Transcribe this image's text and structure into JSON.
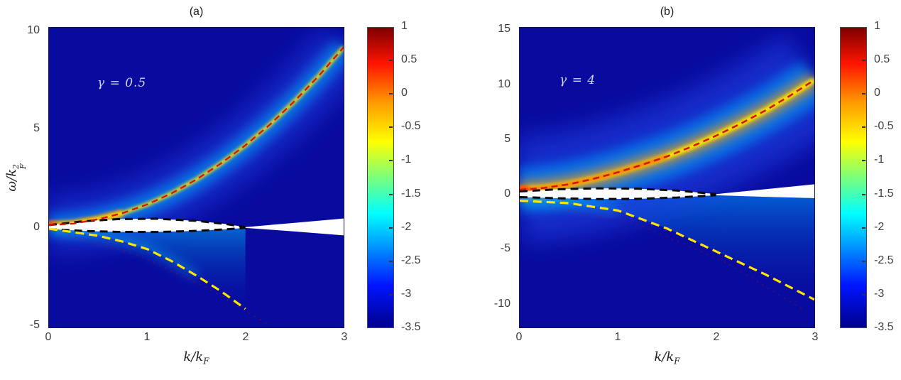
{
  "figure": {
    "background_color": "#ffffff",
    "description_colors": {
      "heatmap_background": "#090b9f",
      "ridge_core": "#ffe800",
      "ridge_dashed_line": "#d41800",
      "lower_branch_dashed_line": "#ffe600",
      "continuum_border_dashed": "#0a0a0a",
      "continuum_fill": "#ffffff",
      "annotation_text": "#ccd6f1"
    }
  },
  "chart_data": [
    {
      "type": "heatmap",
      "title": "(a)",
      "annotation": "γ = 0.5",
      "xlabel": "k/k_F",
      "ylabel": "ω/k_F^2",
      "xlabel_parts": {
        "base": "k/k",
        "sub": "F"
      },
      "ylabel_parts": {
        "base": "ω/k",
        "sup": "2",
        "sub": "F"
      },
      "xlim": [
        0,
        3
      ],
      "ylim": [
        -5.1,
        10.2
      ],
      "xtick_vals": [
        0,
        1,
        2,
        3
      ],
      "xtick_labels": [
        "0",
        "1",
        "2",
        "3"
      ],
      "ytick_vals": [
        10,
        5,
        0,
        -5
      ],
      "ytick_labels": [
        "10",
        "5",
        "0",
        "-5"
      ],
      "grid": false,
      "colorbar": {
        "min": -3.5,
        "max": 1,
        "colormap": "jet",
        "tick_vals": [
          1,
          0.5,
          0,
          -0.5,
          -1,
          -1.5,
          -2,
          -2.5,
          -3,
          -3.5
        ],
        "tick_labels": [
          "1",
          "0.5",
          "0",
          "-0.5",
          "-1",
          "-1.5",
          "-2",
          "-2.5",
          "-3",
          "-3.5"
        ],
        "stops": [
          {
            "color": "#7f0000",
            "pos": 0
          },
          {
            "color": "#ff1400",
            "pos": 12
          },
          {
            "color": "#ff9a00",
            "pos": 25
          },
          {
            "color": "#ffff00",
            "pos": 38
          },
          {
            "color": "#7bff7b",
            "pos": 50
          },
          {
            "color": "#00ffff",
            "pos": 62
          },
          {
            "color": "#0096ff",
            "pos": 73
          },
          {
            "color": "#0014ff",
            "pos": 86
          },
          {
            "color": "#00008c",
            "pos": 100
          }
        ]
      },
      "curves": {
        "upper_mode": [
          [
            0,
            0.12
          ],
          [
            0.25,
            0.2
          ],
          [
            0.5,
            0.42
          ],
          [
            0.75,
            0.74
          ],
          [
            1,
            1.18
          ],
          [
            1.25,
            1.75
          ],
          [
            1.5,
            2.45
          ],
          [
            1.75,
            3.27
          ],
          [
            2,
            4.2
          ],
          [
            2.25,
            5.26
          ],
          [
            2.5,
            6.45
          ],
          [
            2.75,
            7.76
          ],
          [
            3,
            9.2
          ]
        ],
        "lower_mode": [
          [
            0,
            -0.06
          ],
          [
            0.5,
            -0.42
          ],
          [
            0.75,
            -0.72
          ],
          [
            1,
            -1.1
          ],
          [
            1.25,
            -1.72
          ],
          [
            1.5,
            -2.45
          ],
          [
            1.75,
            -3.25
          ],
          [
            2,
            -4.15
          ]
        ],
        "lens_upper": [
          [
            0,
            0.12
          ],
          [
            0.35,
            0.32
          ],
          [
            0.7,
            0.43
          ],
          [
            1.1,
            0.45
          ],
          [
            1.5,
            0.34
          ],
          [
            1.8,
            0.18
          ],
          [
            2,
            0.02
          ]
        ],
        "lens_lower": [
          [
            0,
            -0.08
          ],
          [
            0.35,
            -0.17
          ],
          [
            0.7,
            -0.22
          ],
          [
            1.1,
            -0.23
          ],
          [
            1.5,
            -0.17
          ],
          [
            1.8,
            -0.09
          ],
          [
            2,
            -0.02
          ]
        ],
        "wedge_upper": [
          [
            2,
            0.02
          ],
          [
            2.5,
            0.24
          ],
          [
            3,
            0.46
          ]
        ],
        "wedge_lower": [
          [
            2,
            -0.02
          ],
          [
            2.5,
            -0.2
          ],
          [
            3,
            -0.4
          ]
        ],
        "ghost": [
          [
            0.2,
            -0.4
          ],
          [
            0.9,
            -1.4
          ],
          [
            1.6,
            -3.05
          ],
          [
            2.25,
            -5.0
          ]
        ]
      }
    },
    {
      "type": "heatmap",
      "title": "(b)",
      "annotation": "γ = 4",
      "xlabel": "k/k_F",
      "ylabel": "",
      "xlabel_parts": {
        "base": "k/k",
        "sub": "F"
      },
      "xlim": [
        0,
        3
      ],
      "ylim": [
        -12.15,
        15.28
      ],
      "xtick_vals": [
        0,
        1,
        2,
        3
      ],
      "xtick_labels": [
        "0",
        "1",
        "2",
        "3"
      ],
      "ytick_vals": [
        15,
        10,
        5,
        0,
        -5,
        -10
      ],
      "ytick_labels": [
        "15",
        "10",
        "5",
        "0",
        "-5",
        "-10"
      ],
      "grid": false,
      "colorbar": {
        "min": -3.5,
        "max": 1,
        "colormap": "jet",
        "tick_vals": [
          1,
          0.5,
          0,
          -0.5,
          -1,
          -1.5,
          -2,
          -2.5,
          -3,
          -3.5
        ],
        "tick_labels": [
          "1",
          "0.5",
          "0",
          "-0.5",
          "-1",
          "-1.5",
          "-2",
          "-2.5",
          "-3",
          "-3.5"
        ],
        "stops": [
          {
            "color": "#7f0000",
            "pos": 0
          },
          {
            "color": "#ff1400",
            "pos": 12
          },
          {
            "color": "#ff9a00",
            "pos": 25
          },
          {
            "color": "#ffff00",
            "pos": 38
          },
          {
            "color": "#7bff7b",
            "pos": 50
          },
          {
            "color": "#00ffff",
            "pos": 62
          },
          {
            "color": "#0096ff",
            "pos": 73
          },
          {
            "color": "#0014ff",
            "pos": 86
          },
          {
            "color": "#00008c",
            "pos": 100
          }
        ]
      },
      "curves": {
        "upper_mode": [
          [
            0,
            0.45
          ],
          [
            0.25,
            0.62
          ],
          [
            0.5,
            0.95
          ],
          [
            0.75,
            1.45
          ],
          [
            1,
            2.05
          ],
          [
            1.25,
            2.75
          ],
          [
            1.5,
            3.5
          ],
          [
            1.75,
            4.4
          ],
          [
            2,
            5.4
          ],
          [
            2.25,
            6.5
          ],
          [
            2.5,
            7.7
          ],
          [
            2.75,
            9.05
          ],
          [
            3,
            10.5
          ]
        ],
        "lower_mode": [
          [
            0,
            -0.55
          ],
          [
            0.5,
            -0.78
          ],
          [
            1,
            -1.45
          ],
          [
            1.5,
            -3.1
          ],
          [
            2,
            -5.2
          ],
          [
            2.5,
            -7.3
          ],
          [
            3,
            -9.6
          ]
        ],
        "lens_upper": [
          [
            0,
            0.3
          ],
          [
            0.4,
            0.5
          ],
          [
            0.8,
            0.58
          ],
          [
            1.2,
            0.55
          ],
          [
            1.6,
            0.38
          ],
          [
            2,
            0.05
          ]
        ],
        "lens_lower": [
          [
            0,
            -0.22
          ],
          [
            0.4,
            -0.33
          ],
          [
            0.8,
            -0.4
          ],
          [
            1.2,
            -0.38
          ],
          [
            1.6,
            -0.26
          ],
          [
            2,
            -0.05
          ]
        ],
        "wedge_upper": [
          [
            2,
            0.05
          ],
          [
            2.5,
            0.5
          ],
          [
            3,
            0.95
          ]
        ],
        "wedge_lower": [
          [
            2,
            -0.05
          ],
          [
            2.5,
            -0.2
          ],
          [
            3,
            -0.32
          ]
        ],
        "fan_top": [
          [
            0,
            -0.22
          ],
          [
            0.5,
            -0.35
          ],
          [
            1,
            -0.4
          ],
          [
            1.5,
            -0.3
          ],
          [
            2,
            -0.05
          ],
          [
            2.5,
            -0.2
          ],
          [
            3,
            -0.32
          ]
        ],
        "ghost": [
          [
            0.3,
            -1.1
          ],
          [
            1.2,
            -2.7
          ],
          [
            2.1,
            -6.2
          ],
          [
            2.9,
            -10.6
          ]
        ]
      }
    }
  ]
}
